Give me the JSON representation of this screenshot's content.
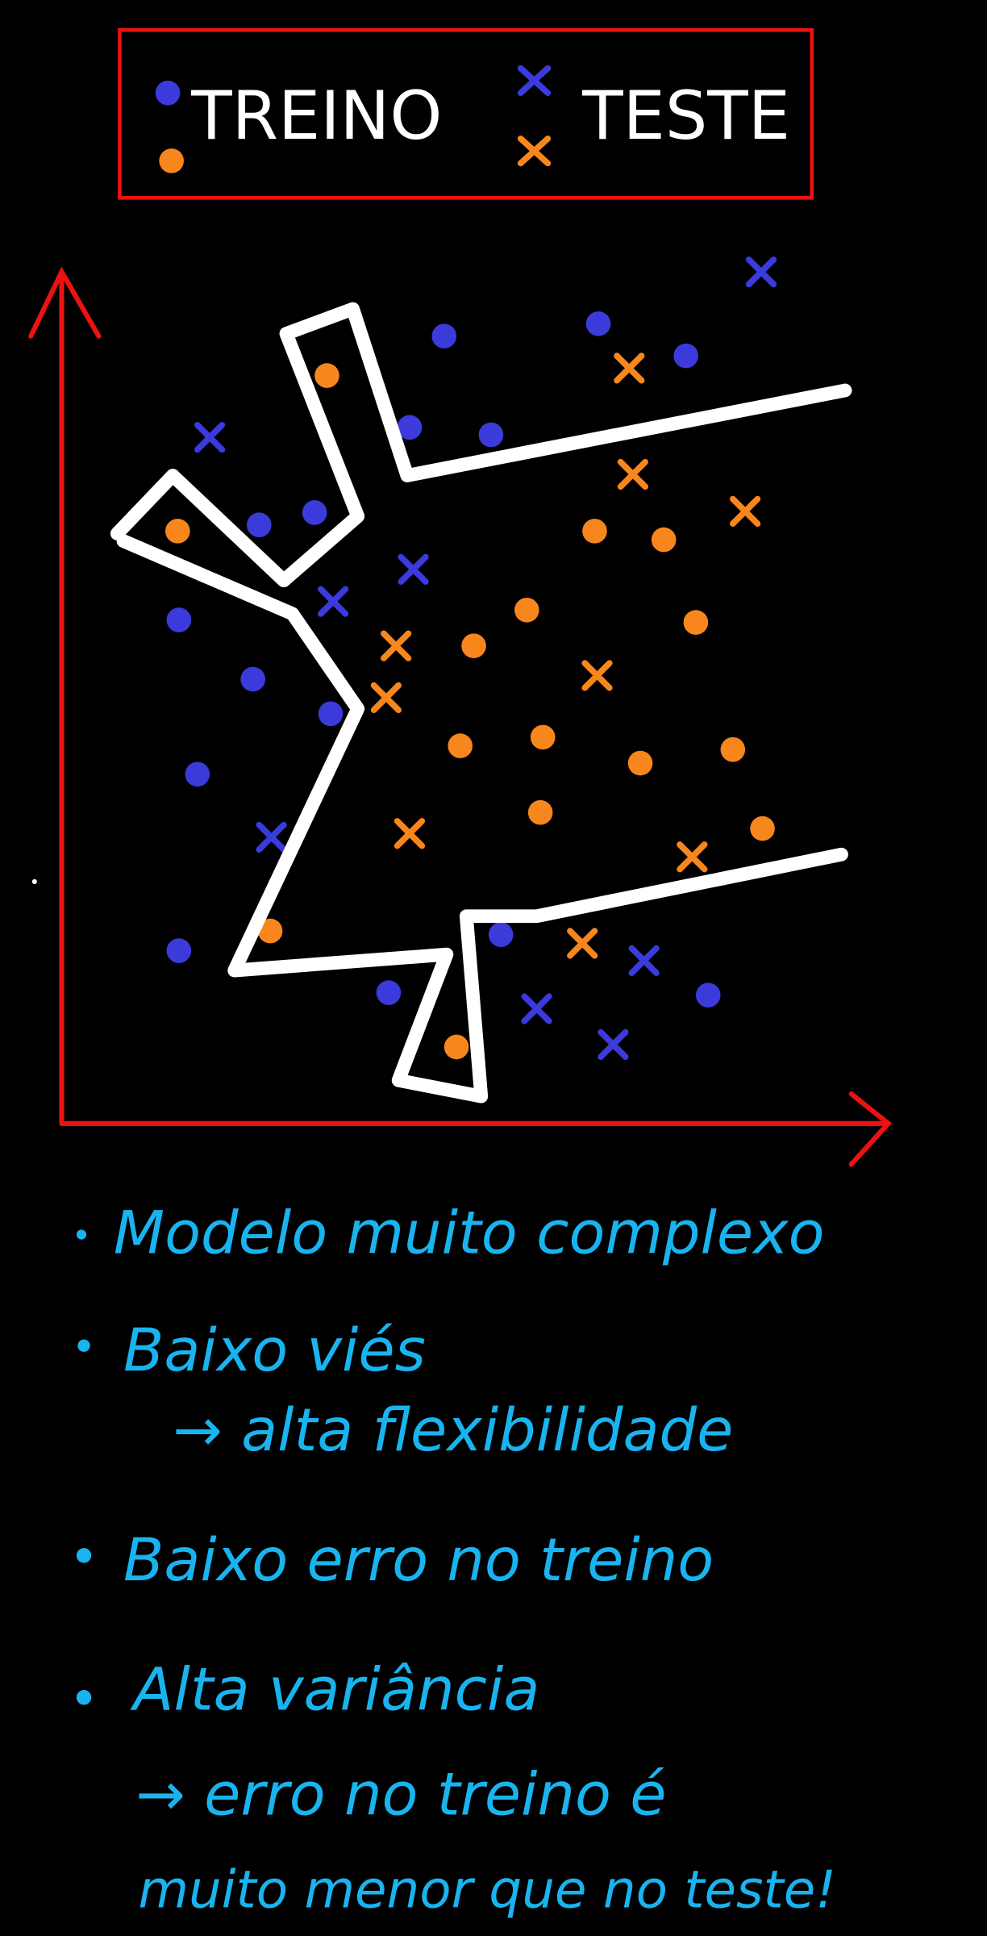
{
  "legend": {
    "train": "TREINO",
    "test": "TESTE"
  },
  "notes": [
    "Modelo muito complexo",
    "Baixo viés",
    "→ alta flexibilidade",
    "Baixo erro no treino",
    "Alta variância",
    "→ erro no treino é",
    "muito menor que no teste!"
  ]
}
